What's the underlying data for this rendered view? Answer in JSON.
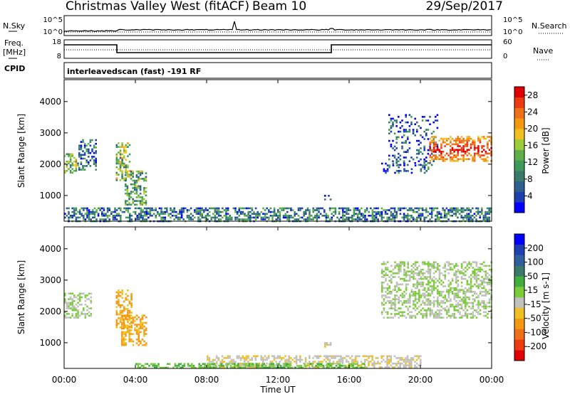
{
  "header": {
    "title": "Christmas Valley West (fitACF)",
    "beam": "Beam 10",
    "date": "29/Sep/2017"
  },
  "top_strip": {
    "nsky_label": "N.Sky",
    "nsky_ticks": [
      "10^5",
      "10^0"
    ],
    "nsearch_label": "N.Search",
    "nsearch_ticks": [
      "10^5",
      "10^0"
    ],
    "freq_label_1": "Freq.",
    "freq_label_2": "[MHz]",
    "freq_ticks": [
      "18",
      "8"
    ],
    "nave_label": "Nave",
    "nave_ticks": [
      "60",
      "0"
    ],
    "cpid_label": "CPID",
    "cpid_text": "interleavedscan (fast) -191 RF"
  },
  "colors": {
    "axis": "#000000",
    "no_data": "#ffffff",
    "ground_scatter": "#c0c0bc"
  },
  "chart_data": [
    {
      "type": "heatmap",
      "panel": "power",
      "ylabel": "Slant Range [km]",
      "xlabel": "",
      "x_ticks": [
        "00:00",
        "04:00",
        "08:00",
        "12:00",
        "16:00",
        "20:00",
        "00:00"
      ],
      "xlim_hours": [
        0,
        24
      ],
      "ylim_km": [
        180,
        4700
      ],
      "y_ticks": [
        1000,
        2000,
        3000,
        4000
      ],
      "colorbar": {
        "label": "Power [dB]",
        "range": [
          0,
          30
        ],
        "ticks": [
          4,
          8,
          12,
          16,
          20,
          24,
          28
        ],
        "colors": [
          "#0000ff",
          "#1d3fb0",
          "#2f5f8f",
          "#3a7a6a",
          "#3f9a5a",
          "#5fb04a",
          "#9ccc3a",
          "#f0c020",
          "#f39a10",
          "#f0701a",
          "#ee3a10",
          "#e00000"
        ]
      },
      "regions": [
        {
          "name": "early-west",
          "t": [
            0.0,
            0.8
          ],
          "r": [
            1750,
            2350
          ],
          "level": 14
        },
        {
          "name": "early-east",
          "t": [
            0.8,
            1.8
          ],
          "r": [
            1800,
            2800
          ],
          "level": 8
        },
        {
          "name": "pre-dawn",
          "t": [
            2.9,
            3.7
          ],
          "r": [
            1500,
            2700
          ],
          "level": 14
        },
        {
          "name": "dawn",
          "t": [
            3.4,
            4.6
          ],
          "r": [
            700,
            1800
          ],
          "level": 12
        },
        {
          "name": "mid-patch",
          "t": [
            14.6,
            15.0
          ],
          "r": [
            880,
            1020
          ],
          "level": 7
        },
        {
          "name": "near-range",
          "t": [
            0.0,
            24.0
          ],
          "r": [
            190,
            620
          ],
          "level": 8
        },
        {
          "name": "evening-weak",
          "t": [
            17.8,
            20.6
          ],
          "r": [
            1750,
            2050
          ],
          "level": 6
        },
        {
          "name": "evening-spread",
          "t": [
            18.2,
            21.0
          ],
          "r": [
            2000,
            3600
          ],
          "level": 5
        },
        {
          "name": "late-band",
          "t": [
            20.5,
            24.0
          ],
          "r": [
            2100,
            2900
          ],
          "level": 20
        }
      ]
    },
    {
      "type": "heatmap",
      "panel": "velocity",
      "ylabel": "Slant Range [km]",
      "xlabel": "Time UT",
      "x_ticks": [
        "00:00",
        "04:00",
        "08:00",
        "12:00",
        "16:00",
        "20:00",
        "00:00"
      ],
      "xlim_hours": [
        0,
        24
      ],
      "ylim_km": [
        180,
        4700
      ],
      "y_ticks": [
        1000,
        2000,
        3000,
        4000
      ],
      "colorbar": {
        "label": "Velocity [m s-1]",
        "range": [
          -250,
          250
        ],
        "ticks": [
          200,
          100,
          50,
          15,
          -15,
          -50,
          -100,
          -200
        ],
        "colors": [
          "#e00000",
          "#ee3a10",
          "#f0701a",
          "#f39a10",
          "#f0c020",
          "#c0c0bc",
          "#7ccc3a",
          "#3fae3a",
          "#3a7a6a",
          "#2f5f9f",
          "#1d3fb0",
          "#0000ff"
        ]
      },
      "regions": [
        {
          "name": "early-ground",
          "t": [
            0.0,
            1.5
          ],
          "r": [
            1800,
            2600
          ],
          "level": 0
        },
        {
          "name": "pre-dawn",
          "t": [
            2.9,
            3.8
          ],
          "r": [
            1500,
            2700
          ],
          "level": -90
        },
        {
          "name": "dawn",
          "t": [
            3.2,
            4.6
          ],
          "r": [
            900,
            1900
          ],
          "level": -90
        },
        {
          "name": "near-range-day",
          "t": [
            8.0,
            20.0
          ],
          "r": [
            190,
            600
          ],
          "level": -30
        },
        {
          "name": "near-range-green",
          "t": [
            4.0,
            17.0
          ],
          "r": [
            190,
            350
          ],
          "level": 40
        },
        {
          "name": "mid-patch",
          "t": [
            14.6,
            15.0
          ],
          "r": [
            880,
            1020
          ],
          "level": -40
        },
        {
          "name": "evening-ground",
          "t": [
            17.8,
            24.0
          ],
          "r": [
            1800,
            3600
          ],
          "level": 0
        }
      ]
    }
  ]
}
